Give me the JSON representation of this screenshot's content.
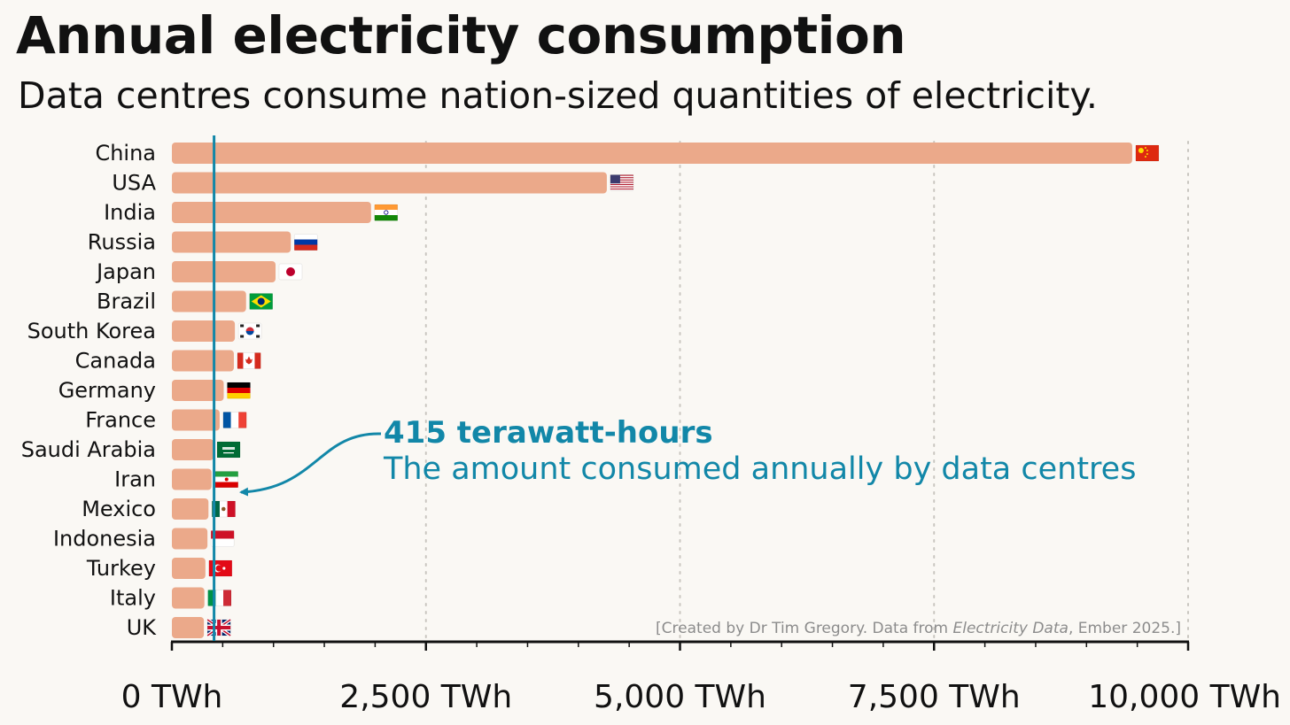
{
  "header": {
    "title": "Annual electricity consumption",
    "subtitle": "Data centres consume nation-sized quantities of electricity."
  },
  "annotation": {
    "title": "415 terawatt-hours",
    "text": "The amount consumed annually by data centres",
    "value": 415
  },
  "source": {
    "prefix": "[Created by Dr Tim Gregory. Data from ",
    "italic": "Electricity Data",
    "suffix": ", Ember 2025.]"
  },
  "colors": {
    "bar": "#eba98a",
    "accent": "#1287a8",
    "axis": "#111111"
  },
  "chart_data": {
    "type": "bar",
    "orientation": "horizontal",
    "title": "Annual electricity consumption",
    "subtitle": "Data centres consume nation-sized quantities of electricity.",
    "unit": "TWh",
    "categories": [
      "China",
      "USA",
      "India",
      "Russia",
      "Japan",
      "Brazil",
      "South Korea",
      "Canada",
      "Germany",
      "France",
      "Saudi Arabia",
      "Iran",
      "Mexico",
      "Indonesia",
      "Turkey",
      "Italy",
      "UK"
    ],
    "values": [
      9450,
      4280,
      1960,
      1170,
      1020,
      730,
      620,
      610,
      510,
      470,
      410,
      390,
      360,
      350,
      330,
      320,
      315
    ],
    "flags": [
      "flag-china",
      "flag-usa",
      "flag-india",
      "flag-russia",
      "flag-japan",
      "flag-brazil",
      "flag-south-korea",
      "flag-canada",
      "flag-germany",
      "flag-france",
      "flag-saudi-arabia",
      "flag-iran",
      "flag-mexico",
      "flag-indonesia",
      "flag-turkey",
      "flag-italy",
      "flag-uk"
    ],
    "xlim": [
      0,
      10000
    ],
    "xticks": [
      0,
      2500,
      5000,
      7500,
      10000
    ],
    "xtick_labels": [
      "0 TWh",
      "2,500 TWh",
      "5,000 TWh",
      "7,500 TWh",
      "10,000 TWh"
    ],
    "minor_tick_step": 500,
    "reference_line": 415,
    "grid": "vertical dotted"
  }
}
